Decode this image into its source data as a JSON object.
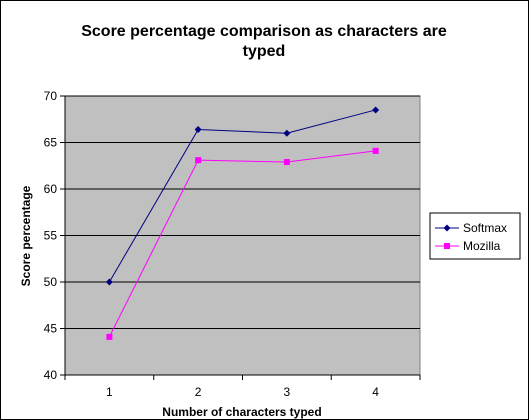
{
  "chart_data": {
    "type": "line",
    "title": "Score percentage comparison as characters are typed",
    "title_lines": [
      "Score percentage comparison as characters are",
      "typed"
    ],
    "xlabel": "Number of characters typed",
    "ylabel": "Score percentage",
    "categories": [
      "1",
      "2",
      "3",
      "4"
    ],
    "ylim": [
      40,
      70
    ],
    "yticks": [
      "40",
      "45",
      "50",
      "55",
      "60",
      "65",
      "70"
    ],
    "grid": true,
    "legend_position": "right",
    "plot_background": "#c0c0c0",
    "series": [
      {
        "name": "Softmax",
        "values": [
          50,
          66.4,
          66,
          68.5
        ],
        "color": "#000080",
        "marker": "diamond"
      },
      {
        "name": "Mozilla",
        "values": [
          44.1,
          63.1,
          62.9,
          64.1
        ],
        "color": "#ff00ff",
        "marker": "square"
      }
    ]
  }
}
